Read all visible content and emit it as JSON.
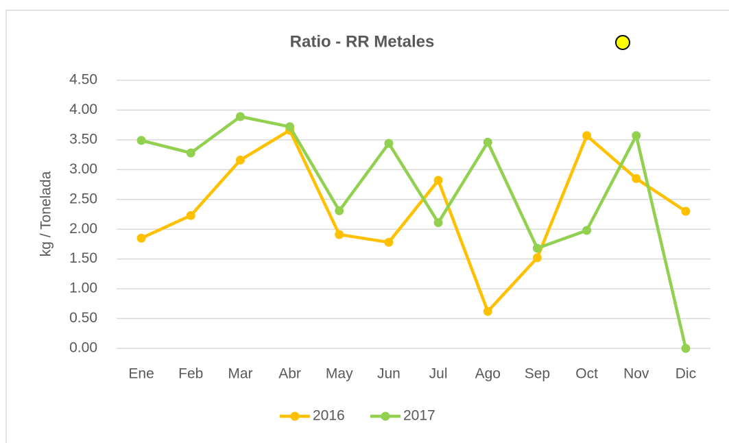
{
  "chart_data": {
    "type": "line",
    "title": "Ratio - RR Metales",
    "y_label": "kg / Tonelada",
    "categories": [
      "Ene",
      "Feb",
      "Mar",
      "Abr",
      "May",
      "Jun",
      "Jul",
      "Ago",
      "Sep",
      "Oct",
      "Nov",
      "Dic"
    ],
    "series": [
      {
        "name": "2016",
        "color": "#ffc000",
        "values": [
          1.85,
          2.23,
          3.16,
          3.66,
          1.91,
          1.78,
          2.82,
          0.62,
          1.52,
          3.57,
          2.85,
          2.3
        ]
      },
      {
        "name": "2017",
        "color": "#92d050",
        "values": [
          3.49,
          3.28,
          3.89,
          3.72,
          2.31,
          3.44,
          2.11,
          3.46,
          1.68,
          1.98,
          3.57,
          0.0
        ]
      }
    ],
    "ylim": [
      0,
      4.5
    ],
    "yticks": [
      {
        "value": 0,
        "label": "0.00"
      },
      {
        "value": 0.5,
        "label": "0.50"
      },
      {
        "value": 1,
        "label": "1.00"
      },
      {
        "value": 1.5,
        "label": "1.50"
      },
      {
        "value": 2,
        "label": "2.00"
      },
      {
        "value": 2.5,
        "label": "2.50"
      },
      {
        "value": 3,
        "label": "3.00"
      },
      {
        "value": 3.5,
        "label": "3.50"
      },
      {
        "value": 4,
        "label": "4.00"
      },
      {
        "value": 4.5,
        "label": "4.50"
      }
    ],
    "grid": true,
    "legend": "bottom"
  }
}
